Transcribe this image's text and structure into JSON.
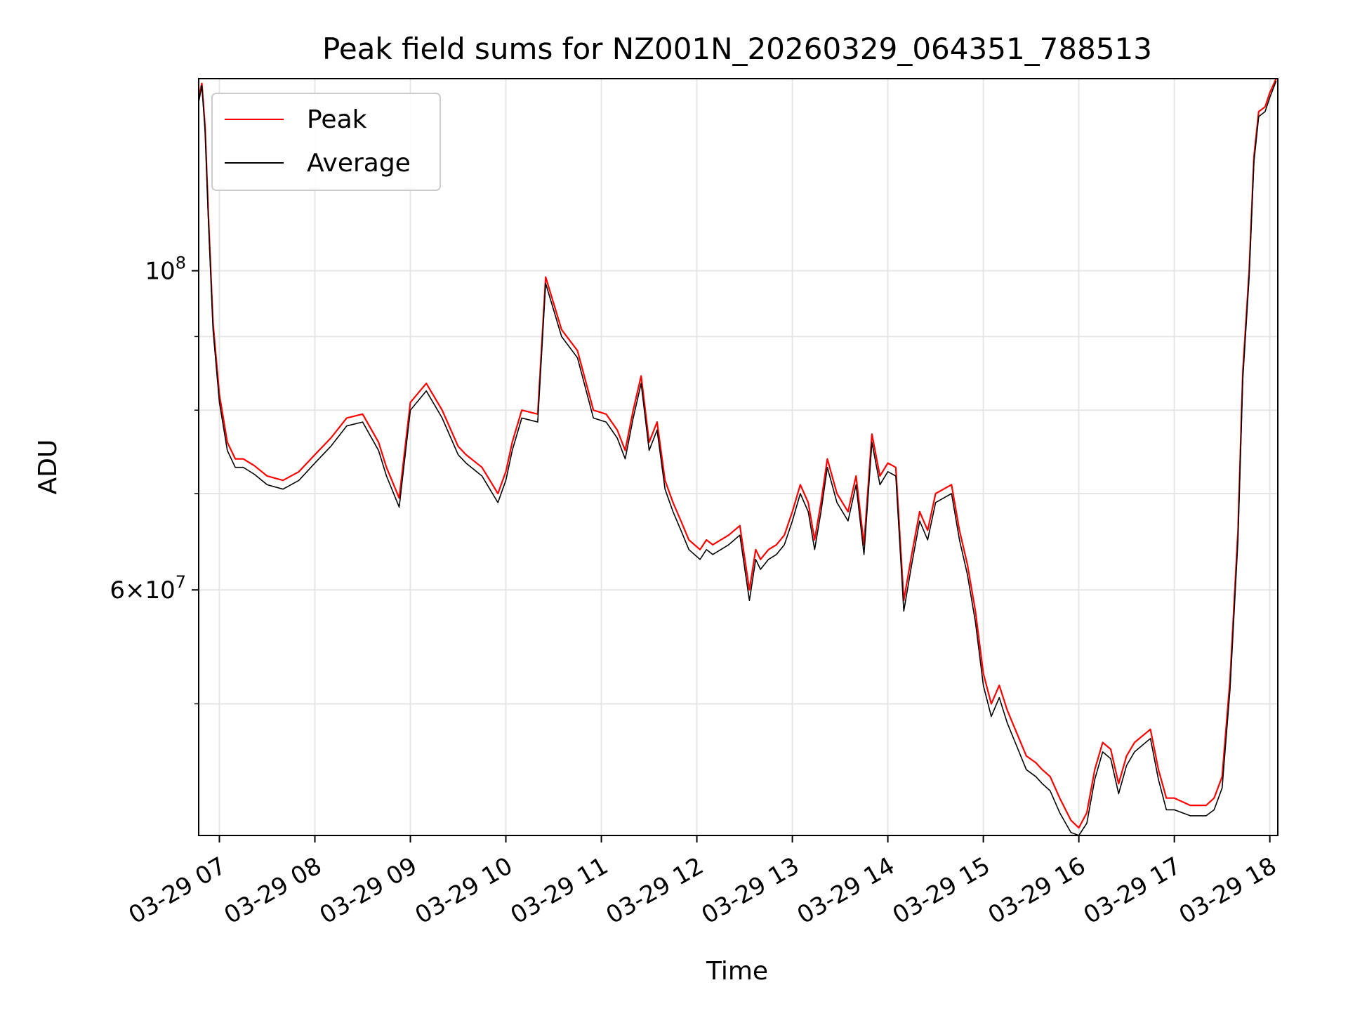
{
  "chart_data": {
    "type": "line",
    "title": "Peak field sums for NZ001N_20260329_064351_788513",
    "xlabel": "Time",
    "ylabel": "ADU",
    "yscale": "log",
    "grid": true,
    "legend_position": "upper-left",
    "xlim": [
      "2026-03-29 06:47",
      "2026-03-29 18:05"
    ],
    "ylim": [
      40500000,
      136000000
    ],
    "x_ticks": [
      "2026-03-29 07:00",
      "2026-03-29 08:00",
      "2026-03-29 09:00",
      "2026-03-29 10:00",
      "2026-03-29 11:00",
      "2026-03-29 12:00",
      "2026-03-29 13:00",
      "2026-03-29 14:00",
      "2026-03-29 15:00",
      "2026-03-29 16:00",
      "2026-03-29 17:00",
      "2026-03-29 18:00"
    ],
    "x_tick_labels": [
      "03-29 07",
      "03-29 08",
      "03-29 09",
      "03-29 10",
      "03-29 11",
      "03-29 12",
      "03-29 13",
      "03-29 14",
      "03-29 15",
      "03-29 16",
      "03-29 17",
      "03-29 18"
    ],
    "y_major_ticks": [
      100000000,
      60000000
    ],
    "y_major_tick_labels": [
      {
        "base": "10",
        "exp": "8"
      },
      {
        "mant": "6",
        "base": "10",
        "exp": "7"
      }
    ],
    "y_minor_ticks": [
      50000000,
      70000000,
      80000000,
      90000000
    ],
    "series": [
      {
        "name": "Peak",
        "color": "#ff0000",
        "x": [
          "2026-03-29 06:47",
          "2026-03-29 06:49",
          "2026-03-29 06:51",
          "2026-03-29 06:53",
          "2026-03-29 06:56",
          "2026-03-29 07:00",
          "2026-03-29 07:05",
          "2026-03-29 07:10",
          "2026-03-29 07:15",
          "2026-03-29 07:22",
          "2026-03-29 07:30",
          "2026-03-29 07:40",
          "2026-03-29 07:50",
          "2026-03-29 08:00",
          "2026-03-29 08:10",
          "2026-03-29 08:20",
          "2026-03-29 08:30",
          "2026-03-29 08:40",
          "2026-03-29 08:45",
          "2026-03-29 08:53",
          "2026-03-29 09:00",
          "2026-03-29 09:10",
          "2026-03-29 09:20",
          "2026-03-29 09:30",
          "2026-03-29 09:35",
          "2026-03-29 09:45",
          "2026-03-29 09:55",
          "2026-03-29 10:00",
          "2026-03-29 10:04",
          "2026-03-29 10:10",
          "2026-03-29 10:20",
          "2026-03-29 10:25",
          "2026-03-29 10:35",
          "2026-03-29 10:45",
          "2026-03-29 10:55",
          "2026-03-29 11:03",
          "2026-03-29 11:10",
          "2026-03-29 11:15",
          "2026-03-29 11:20",
          "2026-03-29 11:25",
          "2026-03-29 11:30",
          "2026-03-29 11:35",
          "2026-03-29 11:40",
          "2026-03-29 11:45",
          "2026-03-29 11:50",
          "2026-03-29 11:55",
          "2026-03-29 12:02",
          "2026-03-29 12:06",
          "2026-03-29 12:10",
          "2026-03-29 12:20",
          "2026-03-29 12:27",
          "2026-03-29 12:33",
          "2026-03-29 12:37",
          "2026-03-29 12:40",
          "2026-03-29 12:45",
          "2026-03-29 12:50",
          "2026-03-29 12:55",
          "2026-03-29 13:00",
          "2026-03-29 13:05",
          "2026-03-29 13:10",
          "2026-03-29 13:14",
          "2026-03-29 13:18",
          "2026-03-29 13:22",
          "2026-03-29 13:28",
          "2026-03-29 13:35",
          "2026-03-29 13:40",
          "2026-03-29 13:45",
          "2026-03-29 13:50",
          "2026-03-29 13:55",
          "2026-03-29 14:00",
          "2026-03-29 14:05",
          "2026-03-29 14:10",
          "2026-03-29 14:15",
          "2026-03-29 14:20",
          "2026-03-29 14:25",
          "2026-03-29 14:30",
          "2026-03-29 14:35",
          "2026-03-29 14:40",
          "2026-03-29 14:45",
          "2026-03-29 14:50",
          "2026-03-29 14:55",
          "2026-03-29 15:00",
          "2026-03-29 15:05",
          "2026-03-29 15:10",
          "2026-03-29 15:15",
          "2026-03-29 15:20",
          "2026-03-29 15:27",
          "2026-03-29 15:33",
          "2026-03-29 15:37",
          "2026-03-29 15:42",
          "2026-03-29 15:48",
          "2026-03-29 15:55",
          "2026-03-29 16:00",
          "2026-03-29 16:05",
          "2026-03-29 16:10",
          "2026-03-29 16:15",
          "2026-03-29 16:20",
          "2026-03-29 16:25",
          "2026-03-29 16:30",
          "2026-03-29 16:35",
          "2026-03-29 16:40",
          "2026-03-29 16:45",
          "2026-03-29 16:50",
          "2026-03-29 16:55",
          "2026-03-29 17:00",
          "2026-03-29 17:10",
          "2026-03-29 17:15",
          "2026-03-29 17:20",
          "2026-03-29 17:25",
          "2026-03-29 17:30",
          "2026-03-29 17:35",
          "2026-03-29 17:40",
          "2026-03-29 17:43",
          "2026-03-29 17:47",
          "2026-03-29 17:50",
          "2026-03-29 17:53",
          "2026-03-29 17:57",
          "2026-03-29 18:00",
          "2026-03-29 18:04"
        ],
        "y": [
          132000000,
          135000000,
          126000000,
          110000000,
          92000000,
          82000000,
          76000000,
          74000000,
          74000000,
          73200000,
          72000000,
          71500000,
          72500000,
          74500000,
          76500000,
          79000000,
          79500000,
          76000000,
          73000000,
          69500000,
          81000000,
          83500000,
          80000000,
          75500000,
          74500000,
          73000000,
          70000000,
          72500000,
          76000000,
          80000000,
          79500000,
          99000000,
          91000000,
          88000000,
          80000000,
          79500000,
          77500000,
          75000000,
          80000000,
          84500000,
          76000000,
          78500000,
          71500000,
          69000000,
          67000000,
          65000000,
          64000000,
          65000000,
          64500000,
          65500000,
          66500000,
          60000000,
          64000000,
          63000000,
          64000000,
          64500000,
          65500000,
          68000000,
          71000000,
          69000000,
          65000000,
          69000000,
          74000000,
          70000000,
          68000000,
          72000000,
          64500000,
          77000000,
          72000000,
          73500000,
          73000000,
          59000000,
          63500000,
          68000000,
          66000000,
          70000000,
          70500000,
          71000000,
          66000000,
          62500000,
          58000000,
          52500000,
          50000000,
          51500000,
          49500000,
          48000000,
          46000000,
          45500000,
          45000000,
          44500000,
          43000000,
          41500000,
          41000000,
          42000000,
          45000000,
          47000000,
          46500000,
          44000000,
          46000000,
          47000000,
          47500000,
          48000000,
          45000000,
          43000000,
          43000000,
          42500000,
          42500000,
          42500000,
          43000000,
          44500000,
          52000000,
          66000000,
          85000000,
          100000000,
          120000000,
          129000000,
          130000000,
          133000000,
          136000000
        ]
      },
      {
        "name": "Average",
        "color": "#000000",
        "x": [
          "2026-03-29 06:47",
          "2026-03-29 06:49",
          "2026-03-29 06:51",
          "2026-03-29 06:53",
          "2026-03-29 06:56",
          "2026-03-29 07:00",
          "2026-03-29 07:05",
          "2026-03-29 07:10",
          "2026-03-29 07:15",
          "2026-03-29 07:22",
          "2026-03-29 07:30",
          "2026-03-29 07:40",
          "2026-03-29 07:50",
          "2026-03-29 08:00",
          "2026-03-29 08:10",
          "2026-03-29 08:20",
          "2026-03-29 08:30",
          "2026-03-29 08:40",
          "2026-03-29 08:45",
          "2026-03-29 08:53",
          "2026-03-29 09:00",
          "2026-03-29 09:10",
          "2026-03-29 09:20",
          "2026-03-29 09:30",
          "2026-03-29 09:35",
          "2026-03-29 09:45",
          "2026-03-29 09:55",
          "2026-03-29 10:00",
          "2026-03-29 10:04",
          "2026-03-29 10:10",
          "2026-03-29 10:20",
          "2026-03-29 10:25",
          "2026-03-29 10:35",
          "2026-03-29 10:45",
          "2026-03-29 10:55",
          "2026-03-29 11:03",
          "2026-03-29 11:10",
          "2026-03-29 11:15",
          "2026-03-29 11:20",
          "2026-03-29 11:25",
          "2026-03-29 11:30",
          "2026-03-29 11:35",
          "2026-03-29 11:40",
          "2026-03-29 11:45",
          "2026-03-29 11:50",
          "2026-03-29 11:55",
          "2026-03-29 12:02",
          "2026-03-29 12:06",
          "2026-03-29 12:10",
          "2026-03-29 12:20",
          "2026-03-29 12:27",
          "2026-03-29 12:33",
          "2026-03-29 12:37",
          "2026-03-29 12:40",
          "2026-03-29 12:45",
          "2026-03-29 12:50",
          "2026-03-29 12:55",
          "2026-03-29 13:00",
          "2026-03-29 13:05",
          "2026-03-29 13:10",
          "2026-03-29 13:14",
          "2026-03-29 13:18",
          "2026-03-29 13:22",
          "2026-03-29 13:28",
          "2026-03-29 13:35",
          "2026-03-29 13:40",
          "2026-03-29 13:45",
          "2026-03-29 13:50",
          "2026-03-29 13:55",
          "2026-03-29 14:00",
          "2026-03-29 14:05",
          "2026-03-29 14:10",
          "2026-03-29 14:15",
          "2026-03-29 14:20",
          "2026-03-29 14:25",
          "2026-03-29 14:30",
          "2026-03-29 14:35",
          "2026-03-29 14:40",
          "2026-03-29 14:45",
          "2026-03-29 14:50",
          "2026-03-29 14:55",
          "2026-03-29 15:00",
          "2026-03-29 15:05",
          "2026-03-29 15:10",
          "2026-03-29 15:15",
          "2026-03-29 15:20",
          "2026-03-29 15:27",
          "2026-03-29 15:33",
          "2026-03-29 15:37",
          "2026-03-29 15:42",
          "2026-03-29 15:48",
          "2026-03-29 15:55",
          "2026-03-29 16:00",
          "2026-03-29 16:05",
          "2026-03-29 16:10",
          "2026-03-29 16:15",
          "2026-03-29 16:20",
          "2026-03-29 16:25",
          "2026-03-29 16:30",
          "2026-03-29 16:35",
          "2026-03-29 16:40",
          "2026-03-29 16:45",
          "2026-03-29 16:50",
          "2026-03-29 16:55",
          "2026-03-29 17:00",
          "2026-03-29 17:10",
          "2026-03-29 17:15",
          "2026-03-29 17:20",
          "2026-03-29 17:25",
          "2026-03-29 17:30",
          "2026-03-29 17:35",
          "2026-03-29 17:40",
          "2026-03-29 17:43",
          "2026-03-29 17:47",
          "2026-03-29 17:50",
          "2026-03-29 17:53",
          "2026-03-29 17:57",
          "2026-03-29 18:00",
          "2026-03-29 18:04"
        ],
        "y": [
          131000000,
          134500000,
          125000000,
          109000000,
          91000000,
          81000000,
          75000000,
          73000000,
          73000000,
          72200000,
          71000000,
          70500000,
          71500000,
          73500000,
          75500000,
          78000000,
          78500000,
          75000000,
          72000000,
          68500000,
          80000000,
          82500000,
          79000000,
          74500000,
          73500000,
          72000000,
          69000000,
          71500000,
          75000000,
          79000000,
          78500000,
          98000000,
          90000000,
          87000000,
          79000000,
          78500000,
          76500000,
          74000000,
          79000000,
          83500000,
          75000000,
          77500000,
          70500000,
          68000000,
          66000000,
          64000000,
          63000000,
          64000000,
          63500000,
          64500000,
          65500000,
          59000000,
          63000000,
          62000000,
          63000000,
          63500000,
          64500000,
          67000000,
          70000000,
          68000000,
          64000000,
          68000000,
          73000000,
          69000000,
          67000000,
          71000000,
          63500000,
          76000000,
          71000000,
          72500000,
          72000000,
          58000000,
          62500000,
          67000000,
          65000000,
          69000000,
          69500000,
          70000000,
          65000000,
          61500000,
          57000000,
          51500000,
          49000000,
          50500000,
          48500000,
          47000000,
          45000000,
          44500000,
          44000000,
          43500000,
          42000000,
          40700000,
          40500000,
          41300000,
          44300000,
          46300000,
          45800000,
          43300000,
          45300000,
          46300000,
          46800000,
          47300000,
          44300000,
          42200000,
          42200000,
          41800000,
          41800000,
          41800000,
          42200000,
          43700000,
          51200000,
          65000000,
          84000000,
          99000000,
          119000000,
          128000000,
          129000000,
          132000000,
          135500000
        ]
      }
    ]
  }
}
